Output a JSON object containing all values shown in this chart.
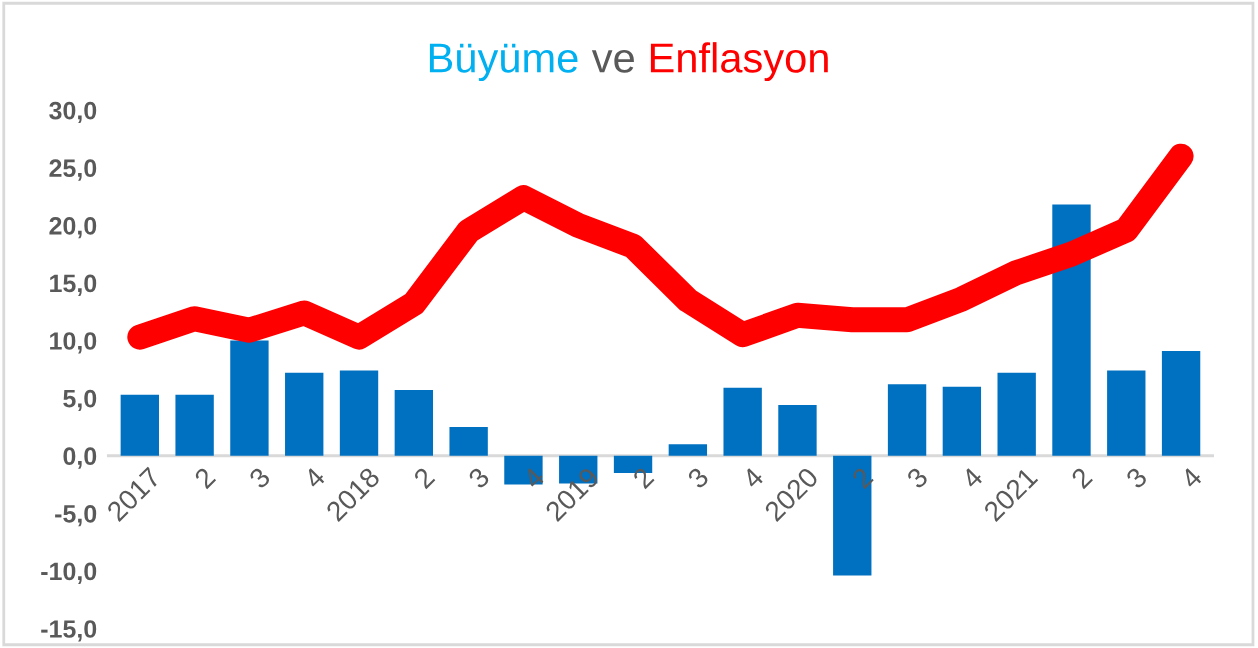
{
  "chart_data": {
    "type": "bar",
    "title": "Büyüme ve Enflasyon",
    "categories": [
      "2017",
      "2",
      "3",
      "4",
      "2018",
      "2",
      "3",
      "4",
      "2019",
      "2",
      "3",
      "4",
      "2020",
      "2",
      "3",
      "4",
      "2021",
      "2",
      "3",
      "4"
    ],
    "series": [
      {
        "color": "#0070c0",
        "values": [
          5.3,
          5.3,
          10.0,
          7.2,
          7.4,
          5.7,
          2.5,
          -2.5,
          -2.4,
          -1.5,
          1.0,
          5.9,
          4.4,
          -10.4,
          6.2,
          6.0,
          7.2,
          21.8,
          7.4,
          9.1
        ]
      },
      {
        "type": "line",
        "color": "#ff0000",
        "values": [
          10.3,
          11.9,
          10.9,
          12.4,
          10.3,
          13.2,
          19.5,
          22.4,
          20.0,
          18.2,
          13.5,
          10.5,
          12.2,
          11.8,
          11.8,
          13.6,
          15.9,
          17.5,
          19.6,
          26.0
        ]
      }
    ],
    "ylim": [
      -15,
      30
    ],
    "yticks": [
      {
        "value": -15,
        "label": "-15,0"
      },
      {
        "value": -10,
        "label": "-10,0"
      },
      {
        "value": -5,
        "label": "-5,0"
      },
      {
        "value": 0,
        "label": "0,0"
      },
      {
        "value": 5,
        "label": "5,0"
      },
      {
        "value": 10,
        "label": "10,0"
      },
      {
        "value": 15,
        "label": "15,0"
      },
      {
        "value": 20,
        "label": "20,0"
      },
      {
        "value": 25,
        "label": "25,0"
      },
      {
        "value": 30,
        "label": "30,0"
      }
    ]
  }
}
